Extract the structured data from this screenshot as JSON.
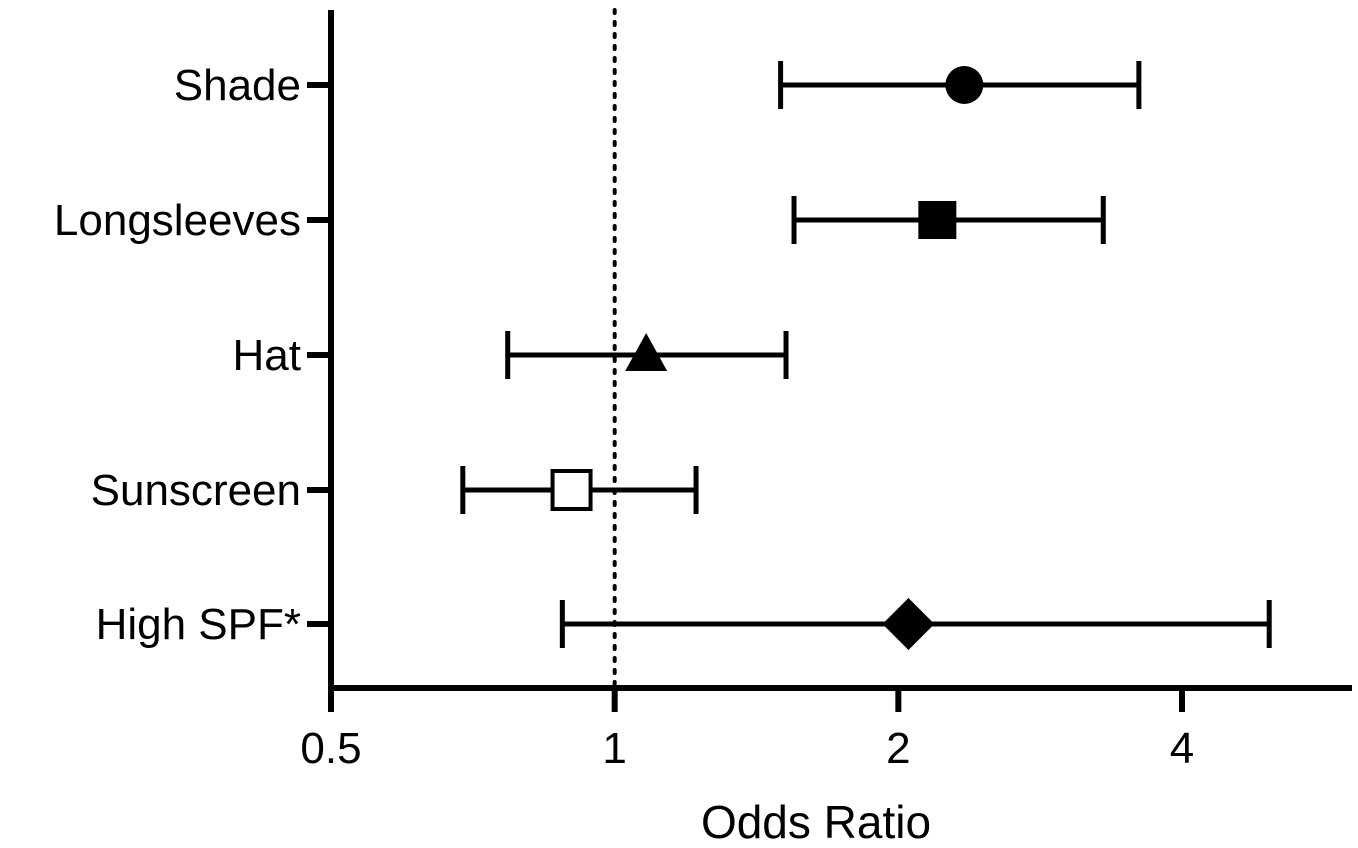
{
  "chart_data": {
    "type": "forest",
    "title": "",
    "xlabel": "Odds Ratio",
    "ylabel": "",
    "x_scale": "log2",
    "xlim": [
      0.5,
      5.6
    ],
    "x_ticks": [
      0.5,
      1,
      2,
      4
    ],
    "x_tick_labels": [
      "0.5",
      "1",
      "2",
      "4"
    ],
    "reference_line": 1,
    "grid": false,
    "categories": [
      "Shade",
      "Longsleeves",
      "Hat",
      "Sunscreen",
      "High SPF*"
    ],
    "series": [
      {
        "values": [
          {
            "label": "Shade",
            "or": 2.35,
            "ci_low": 1.5,
            "ci_high": 3.6,
            "marker": "circle-filled"
          },
          {
            "label": "Longsleeves",
            "or": 2.2,
            "ci_low": 1.55,
            "ci_high": 3.3,
            "marker": "square-filled"
          },
          {
            "label": "Hat",
            "or": 1.08,
            "ci_low": 0.77,
            "ci_high": 1.52,
            "marker": "triangle-filled"
          },
          {
            "label": "Sunscreen",
            "or": 0.9,
            "ci_low": 0.69,
            "ci_high": 1.22,
            "marker": "square-open"
          },
          {
            "label": "High SPF*",
            "or": 2.05,
            "ci_low": 0.88,
            "ci_high": 4.95,
            "marker": "diamond-filled"
          }
        ]
      }
    ]
  }
}
